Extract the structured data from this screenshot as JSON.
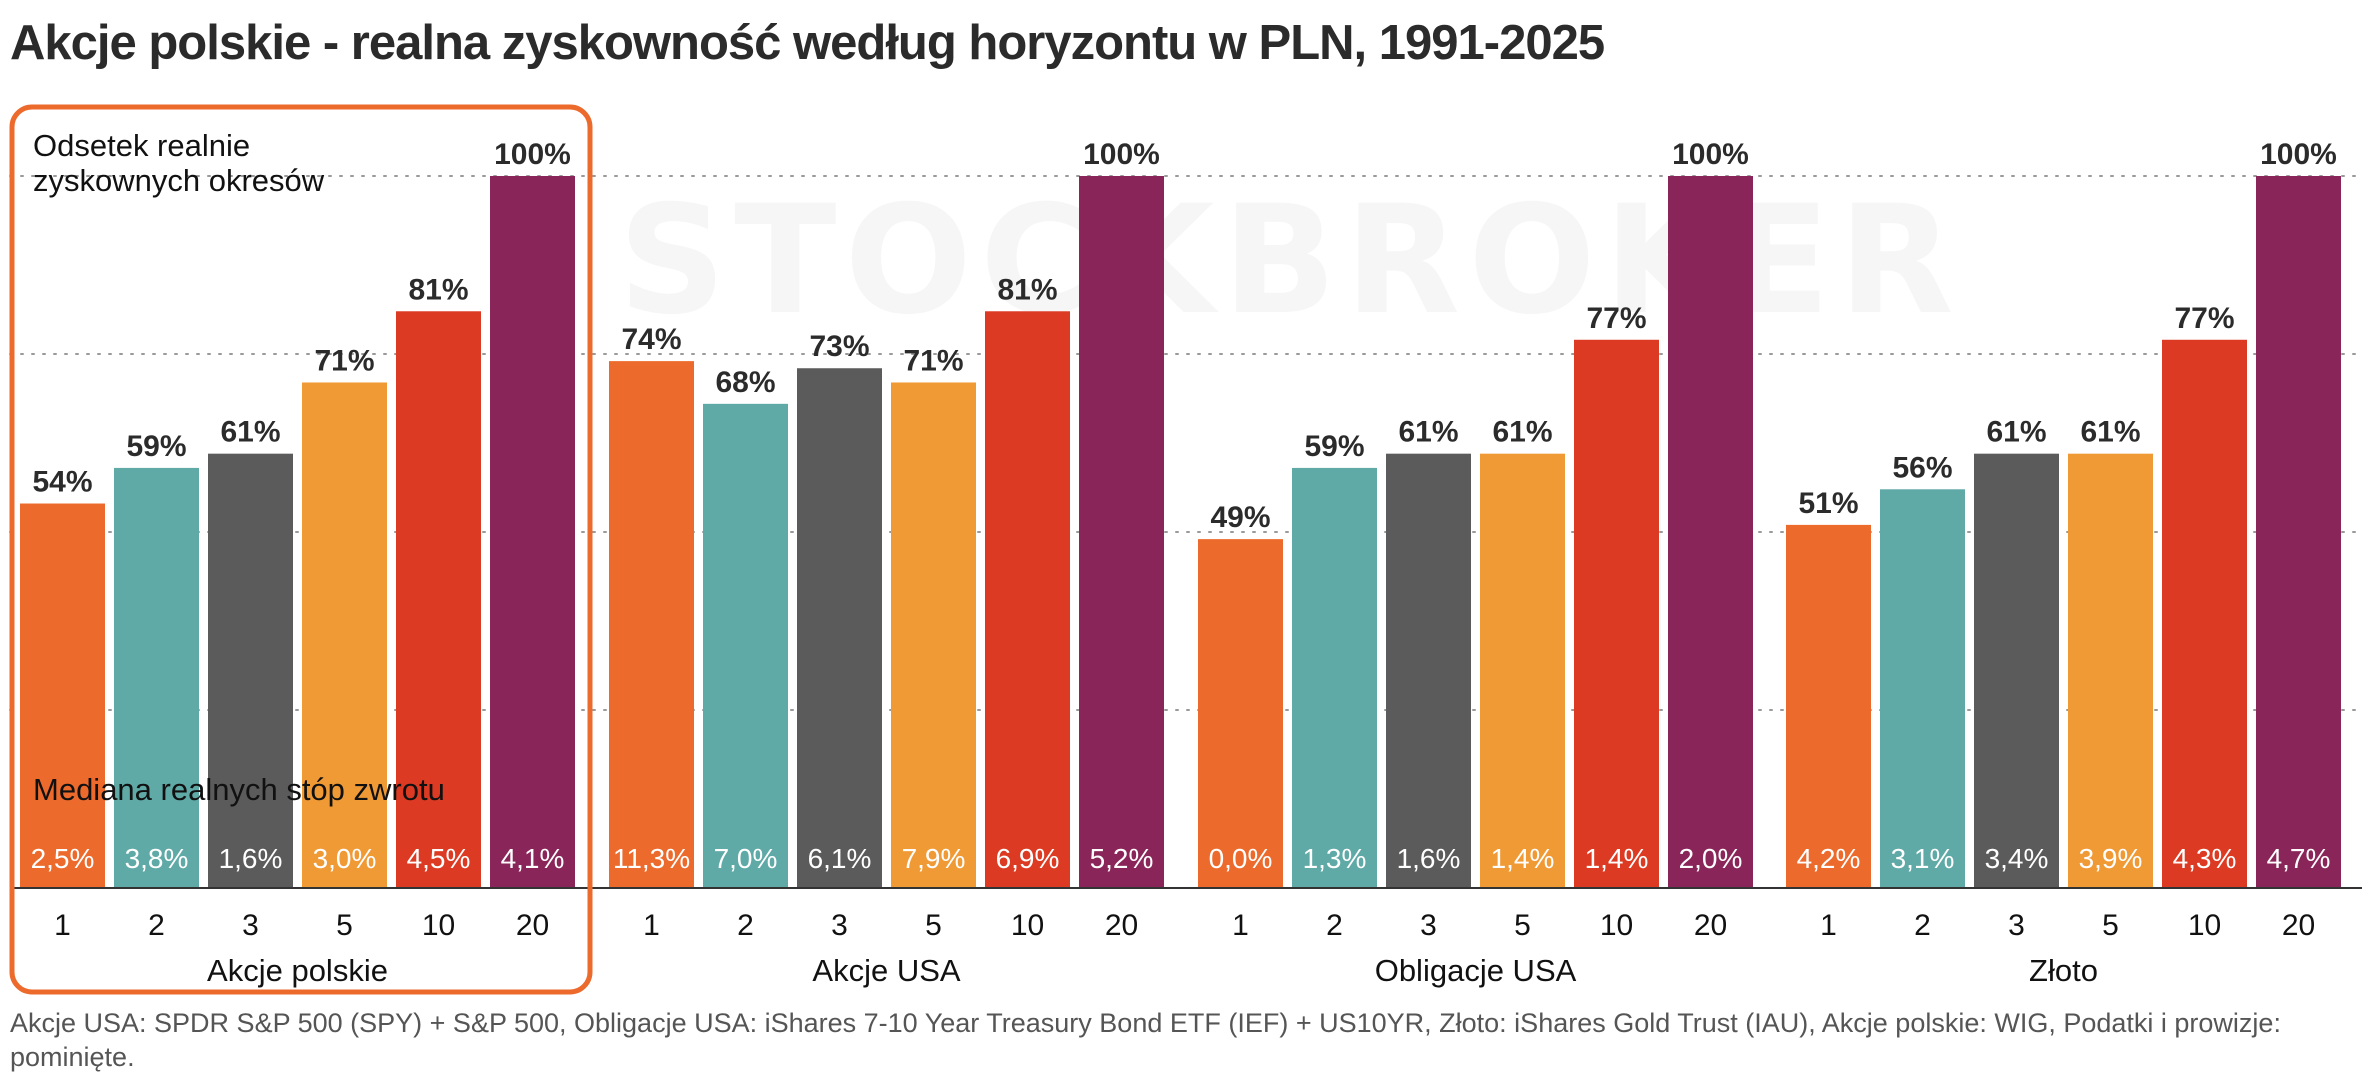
{
  "title": "Akcje polskie - realna zyskowność według horyzontu w PLN, 1991-2025",
  "watermark": "STOCKBROKER",
  "annotations": {
    "top_label_line1": "Odsetek realnie",
    "top_label_line2": "zyskownych okresów",
    "median_label": "Mediana realnych stóp zwrotu"
  },
  "footnote": "Akcje USA: SPDR S&P 500 (SPY) + S&P 500, Obligacje USA: iShares 7-10 Year Treasury Bond ETF (IEF) + US10YR, Złoto: iShares Gold Trust (IAU), Akcje polskie: WIG, Podatki i prowizje: pominięte.",
  "colors": {
    "1": "#ec6a2c",
    "2": "#5fa9a7",
    "3": "#5b5b5b",
    "5": "#f09a35",
    "10": "#dc3a22",
    "20": "#8a2559",
    "highlight_frame": "#ec6a2c"
  },
  "chart_data": {
    "type": "bar",
    "horizons": [
      "1",
      "2",
      "3",
      "5",
      "10",
      "20"
    ],
    "ylim": [
      0,
      100
    ],
    "grid": true,
    "groups": [
      {
        "name": "Akcje polskie",
        "highlighted": true,
        "share_labels": [
          "54%",
          "59%",
          "61%",
          "71%",
          "81%",
          "100%"
        ],
        "share_values": [
          54,
          59,
          61,
          71,
          81,
          100
        ],
        "median_labels": [
          "2,5%",
          "3,8%",
          "1,6%",
          "3,0%",
          "4,5%",
          "4,1%"
        ]
      },
      {
        "name": "Akcje USA",
        "highlighted": false,
        "share_labels": [
          "74%",
          "68%",
          "73%",
          "71%",
          "81%",
          "100%"
        ],
        "share_values": [
          74,
          68,
          73,
          71,
          81,
          100
        ],
        "median_labels": [
          "11,3%",
          "7,0%",
          "6,1%",
          "7,9%",
          "6,9%",
          "5,2%"
        ]
      },
      {
        "name": "Obligacje USA",
        "highlighted": false,
        "share_labels": [
          "49%",
          "59%",
          "61%",
          "61%",
          "77%",
          "100%"
        ],
        "share_values": [
          49,
          59,
          61,
          61,
          77,
          100
        ],
        "median_labels": [
          "0,0%",
          "1,3%",
          "1,6%",
          "1,4%",
          "1,4%",
          "2,0%"
        ]
      },
      {
        "name": "Złoto",
        "highlighted": false,
        "share_labels": [
          "51%",
          "56%",
          "61%",
          "61%",
          "77%",
          "100%"
        ],
        "share_values": [
          51,
          56,
          61,
          61,
          77,
          100
        ],
        "median_labels": [
          "4,2%",
          "3,1%",
          "3,4%",
          "3,9%",
          "4,3%",
          "4,7%"
        ]
      }
    ]
  }
}
